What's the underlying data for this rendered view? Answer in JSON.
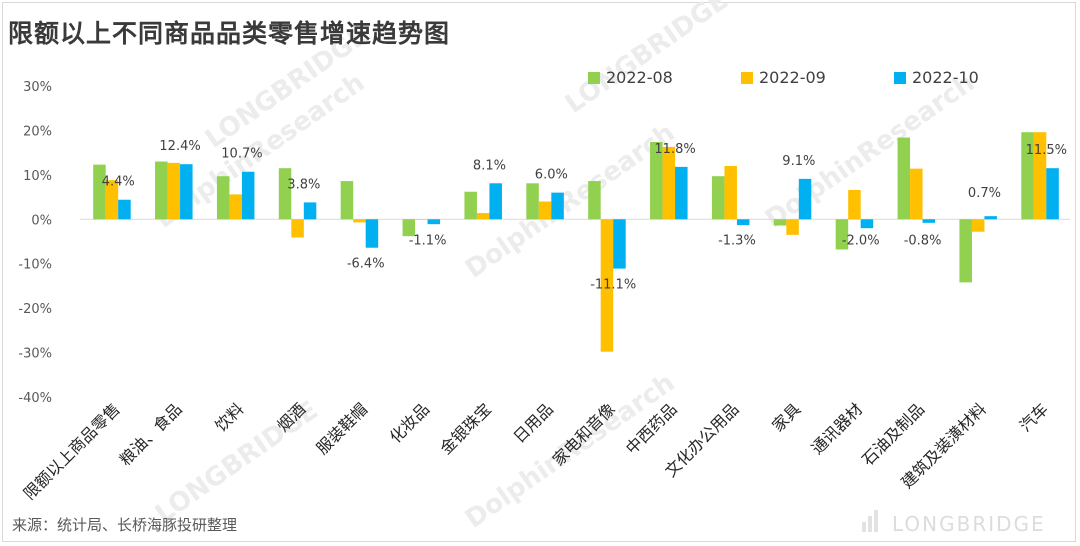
{
  "title": "限额以上不同商品品类零售增速趋势图",
  "source": "来源：统计局、长桥海豚投研整理",
  "brand": "LONGBRIDGE",
  "watermarks": [
    "DolphinResearch",
    "LONGBRIDGE",
    "DolphinResearch",
    "LONGBRIDGE",
    "DolphinResearch",
    "LONGBRIDGE",
    "DolphinResearch"
  ],
  "colors": {
    "s1": "#92d050",
    "s2": "#ffc000",
    "s3": "#00b0f0"
  },
  "chart_data": {
    "type": "bar",
    "title": "限额以上不同商品品类零售增速趋势图",
    "ylim": [
      -0.4,
      0.3
    ],
    "yticks": [
      "30%",
      "20%",
      "10%",
      "0%",
      "-10%",
      "-20%",
      "-30%",
      "-40%"
    ],
    "legend_position": "top-right",
    "grid": false,
    "categories": [
      "限额以上商品零售",
      "粮油、食品",
      "饮料",
      "烟酒",
      "服装鞋帽",
      "化妆品",
      "金银珠宝",
      "日用品",
      "家电和音像",
      "中西药品",
      "文化办公用品",
      "家具",
      "通讯器材",
      "石油及制品",
      "建筑及装潢材料",
      "汽车"
    ],
    "series": [
      {
        "name": "2022-08",
        "values": [
          0.123,
          0.13,
          0.097,
          0.115,
          0.086,
          -0.038,
          0.062,
          0.081,
          0.086,
          0.174,
          0.097,
          -0.014,
          -0.068,
          0.184,
          -0.142,
          0.196
        ]
      },
      {
        "name": "2022-09",
        "values": [
          0.088,
          0.127,
          0.056,
          -0.041,
          -0.007,
          0.0,
          0.014,
          0.04,
          -0.298,
          0.163,
          0.12,
          -0.035,
          0.066,
          0.114,
          -0.028,
          0.196
        ]
      },
      {
        "name": "2022-10",
        "values": [
          0.044,
          0.124,
          0.107,
          0.038,
          -0.064,
          -0.011,
          0.081,
          0.06,
          -0.111,
          0.118,
          -0.013,
          0.091,
          -0.02,
          -0.008,
          0.007,
          0.115
        ]
      }
    ],
    "data_labels": [
      "4.4%",
      "12.4%",
      "10.7%",
      "3.8%",
      "-6.4%",
      "-1.1%",
      "8.1%",
      "6.0%",
      "-11.1%",
      "11.8%",
      "-1.3%",
      "9.1%",
      "-2.0%",
      "-0.8%",
      "0.7%",
      "11.5%"
    ]
  }
}
